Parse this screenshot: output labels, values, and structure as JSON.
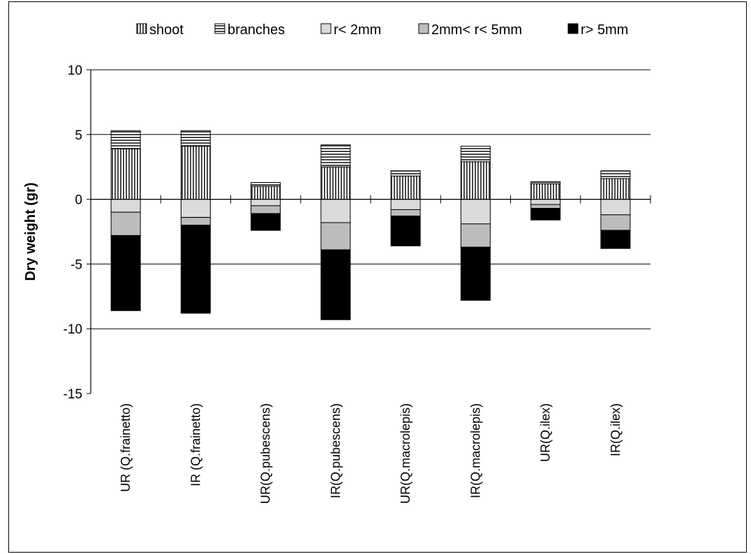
{
  "chart_data": {
    "type": "bar",
    "stacked": true,
    "title": "",
    "xlabel": "",
    "ylabel": "Dry weight (gr)",
    "ylim": [
      -15,
      10
    ],
    "yticks": [
      "10",
      "5",
      "0",
      "-5",
      "-10",
      "-15"
    ],
    "grid": true,
    "legend_position": "top",
    "categories": [
      "UR (Q.frainetto)",
      "IR (Q.frainetto)",
      "UR(Q.pubescens)",
      "IR(Q.pubescens)",
      "UR(Q.macrolepis)",
      "IR(Q.macrolepis)",
      "UR(Q.ilex)",
      "IR(Q.ilex)"
    ],
    "series": [
      {
        "name": "shoot",
        "pattern": "vertical-lines",
        "values": [
          3.9,
          4.1,
          1.0,
          2.5,
          1.8,
          2.9,
          1.2,
          1.6
        ]
      },
      {
        "name": "branches",
        "pattern": "horizontal-lines",
        "values": [
          1.4,
          1.2,
          0.3,
          1.7,
          0.4,
          1.2,
          0.15,
          0.6
        ]
      },
      {
        "name": "r< 2mm",
        "pattern": "light-gray",
        "values": [
          -1.0,
          -1.4,
          -0.5,
          -1.8,
          -0.8,
          -1.9,
          -0.4,
          -1.2
        ]
      },
      {
        "name": "2mm< r< 5mm",
        "pattern": "gray",
        "values": [
          -1.8,
          -0.6,
          -0.6,
          -2.1,
          -0.5,
          -1.8,
          -0.3,
          -1.2
        ]
      },
      {
        "name": "r> 5mm",
        "pattern": "black",
        "values": [
          -5.8,
          -6.8,
          -1.3,
          -5.4,
          -2.3,
          -4.1,
          -0.9,
          -1.4
        ]
      }
    ]
  }
}
